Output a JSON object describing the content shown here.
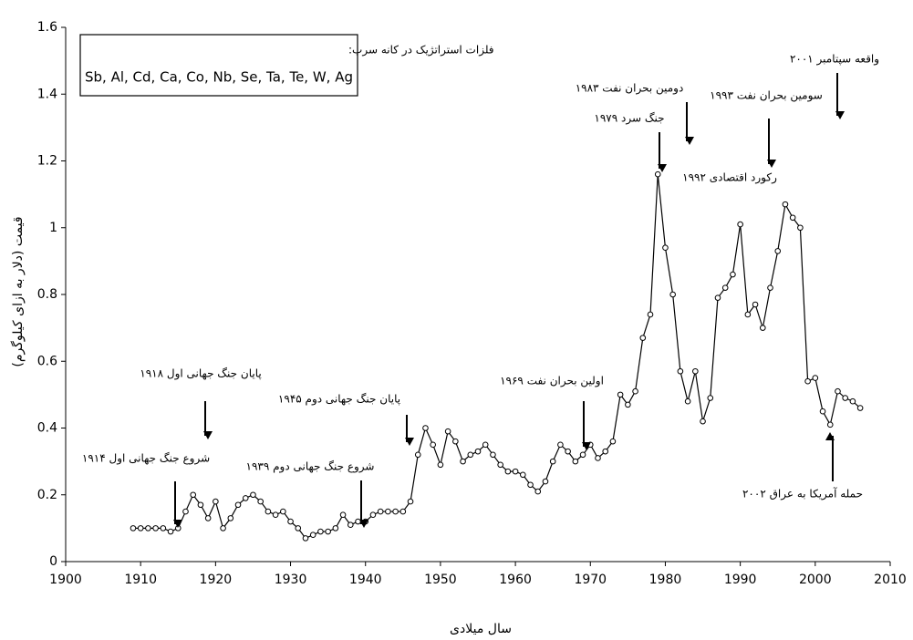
{
  "chart_data": {
    "type": "line",
    "x_label": "سال میلادی",
    "y_label": "قیمت (دلار به ازای کیلوگرم)",
    "box_title": "فلزات استراتژیک در کانه سرب:",
    "box_text": "Sb, Al, Cd, Ca, Co, Nb, Se, Ta, Te, W, Ag",
    "x": [
      1909,
      1910,
      1911,
      1912,
      1913,
      1914,
      1915,
      1916,
      1917,
      1918,
      1919,
      1920,
      1921,
      1922,
      1923,
      1924,
      1925,
      1926,
      1927,
      1928,
      1929,
      1930,
      1931,
      1932,
      1933,
      1934,
      1935,
      1936,
      1937,
      1938,
      1939,
      1940,
      1941,
      1942,
      1943,
      1944,
      1945,
      1946,
      1947,
      1948,
      1949,
      1950,
      1951,
      1952,
      1953,
      1954,
      1955,
      1956,
      1957,
      1958,
      1959,
      1960,
      1961,
      1962,
      1963,
      1964,
      1965,
      1966,
      1967,
      1968,
      1969,
      1970,
      1971,
      1972,
      1973,
      1974,
      1975,
      1976,
      1977,
      1978,
      1979,
      1980,
      1981,
      1982,
      1983,
      1984,
      1985,
      1986,
      1987,
      1988,
      1989,
      1990,
      1991,
      1992,
      1993,
      1994,
      1995,
      1996,
      1997,
      1998,
      1999,
      2000,
      2001,
      2002,
      2003,
      2004,
      2005,
      2006
    ],
    "values": [
      0.1,
      0.1,
      0.1,
      0.1,
      0.1,
      0.09,
      0.1,
      0.15,
      0.2,
      0.17,
      0.13,
      0.18,
      0.1,
      0.13,
      0.17,
      0.19,
      0.2,
      0.18,
      0.15,
      0.14,
      0.15,
      0.12,
      0.1,
      0.07,
      0.08,
      0.09,
      0.09,
      0.1,
      0.14,
      0.11,
      0.12,
      0.12,
      0.14,
      0.15,
      0.15,
      0.15,
      0.15,
      0.18,
      0.32,
      0.4,
      0.35,
      0.29,
      0.39,
      0.36,
      0.3,
      0.32,
      0.33,
      0.35,
      0.32,
      0.29,
      0.27,
      0.27,
      0.26,
      0.23,
      0.21,
      0.24,
      0.3,
      0.35,
      0.33,
      0.3,
      0.32,
      0.35,
      0.31,
      0.33,
      0.36,
      0.5,
      0.47,
      0.51,
      0.67,
      0.74,
      1.16,
      0.94,
      0.8,
      0.57,
      0.48,
      0.57,
      0.42,
      0.49,
      0.79,
      0.82,
      0.86,
      1.01,
      0.74,
      0.77,
      0.7,
      0.82,
      0.93,
      1.07,
      1.03,
      1.0,
      0.54,
      0.55,
      0.45,
      0.41,
      0.51,
      0.49,
      0.48,
      0.46
    ],
    "color": "#000000",
    "xlim": [
      1900,
      2010
    ],
    "xticks": [
      1900,
      1910,
      1920,
      1930,
      1940,
      1950,
      1960,
      1970,
      1980,
      1990,
      2000,
      2010
    ],
    "ylim": [
      0,
      1.6
    ],
    "yticks": [
      0,
      0.2,
      0.4,
      0.6,
      0.8,
      1,
      1.2,
      1.4,
      1.6
    ],
    "grid": false,
    "annotations": [
      "پایان جنگ جهانی اول ۱۹۱۸",
      "شروع جنگ جهانی اول ۱۹۱۴",
      "پایان جنگ جهانی دوم ۱۹۴۵",
      "شروع جنگ جهانی دوم ۱۹۳۹",
      "اولین بحران نفت ۱۹۶۹",
      "دومین بحران نفت ۱۹۸۳",
      "جنگ سرد ۱۹۷۹",
      "سومین بحران نفت ۱۹۹۳",
      "رکورد اقتصادی ۱۹۹۲",
      "واقعه سپتامبر ۲۰۰۱",
      "حمله آمریکا به عراق ۲۰۰۲"
    ]
  }
}
